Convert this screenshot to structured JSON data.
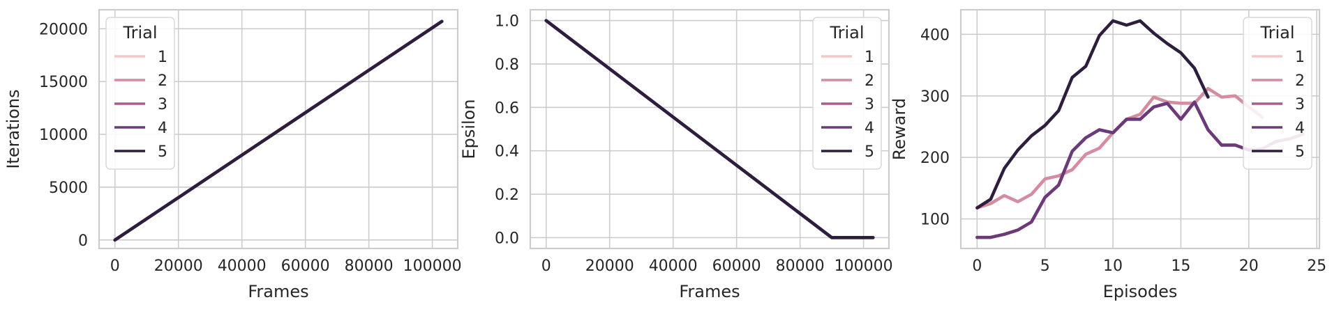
{
  "colors": {
    "background": "#ffffff",
    "grid": "#cccccc",
    "axes_edge": "#cccccc",
    "text": "#262626",
    "trial_palette": [
      "#f0c8c8",
      "#d48ca0",
      "#a65e8c",
      "#6b3a78",
      "#2d1e3e"
    ]
  },
  "chart_data": [
    {
      "type": "line",
      "title": "",
      "xlabel": "Frames",
      "ylabel": "Iterations",
      "xlim": [
        -5000,
        108000
      ],
      "ylim": [
        -800,
        21800
      ],
      "xticks": [
        0,
        20000,
        40000,
        60000,
        80000,
        100000
      ],
      "xtick_labels": [
        "0",
        "20000",
        "40000",
        "60000",
        "80000",
        "100000"
      ],
      "yticks": [
        0,
        5000,
        10000,
        15000,
        20000
      ],
      "ytick_labels": [
        "0",
        "5000",
        "10000",
        "15000",
        "20000"
      ],
      "grid": true,
      "legend": {
        "title": "Trial",
        "placement": "upper-left",
        "entries": [
          "1",
          "2",
          "3",
          "4",
          "5"
        ]
      },
      "series": [
        {
          "name": "1",
          "x": [
            0,
            103000
          ],
          "y": [
            0,
            20700
          ]
        },
        {
          "name": "2",
          "x": [
            0,
            103000
          ],
          "y": [
            0,
            20700
          ]
        },
        {
          "name": "3",
          "x": [
            0,
            103000
          ],
          "y": [
            0,
            20700
          ]
        },
        {
          "name": "4",
          "x": [
            0,
            103000
          ],
          "y": [
            0,
            20700
          ]
        },
        {
          "name": "5",
          "x": [
            0,
            103000
          ],
          "y": [
            0,
            20700
          ]
        }
      ]
    },
    {
      "type": "line",
      "title": "",
      "xlabel": "Frames",
      "ylabel": "Epsilon",
      "xlim": [
        -5000,
        108000
      ],
      "ylim": [
        -0.05,
        1.05
      ],
      "xticks": [
        0,
        20000,
        40000,
        60000,
        80000,
        100000
      ],
      "xtick_labels": [
        "0",
        "20000",
        "40000",
        "60000",
        "80000",
        "100000"
      ],
      "yticks": [
        0.0,
        0.2,
        0.4,
        0.6,
        0.8,
        1.0
      ],
      "ytick_labels": [
        "0.0",
        "0.2",
        "0.4",
        "0.6",
        "0.8",
        "1.0"
      ],
      "grid": true,
      "legend": {
        "title": "Trial",
        "placement": "upper-right",
        "entries": [
          "1",
          "2",
          "3",
          "4",
          "5"
        ]
      },
      "series": [
        {
          "name": "1",
          "x": [
            0,
            90000,
            103000
          ],
          "y": [
            1.0,
            0.0,
            0.0
          ]
        },
        {
          "name": "2",
          "x": [
            0,
            90000,
            103000
          ],
          "y": [
            1.0,
            0.0,
            0.0
          ]
        },
        {
          "name": "3",
          "x": [
            0,
            90000,
            103000
          ],
          "y": [
            1.0,
            0.0,
            0.0
          ]
        },
        {
          "name": "4",
          "x": [
            0,
            90000,
            103000
          ],
          "y": [
            1.0,
            0.0,
            0.0
          ]
        },
        {
          "name": "5",
          "x": [
            0,
            90000,
            103000
          ],
          "y": [
            1.0,
            0.0,
            0.0
          ]
        }
      ]
    },
    {
      "type": "line",
      "title": "",
      "xlabel": "Episodes",
      "ylabel": "Reward",
      "xlim": [
        -1.2,
        25.2
      ],
      "ylim": [
        52,
        440
      ],
      "xticks": [
        0,
        5,
        10,
        15,
        20,
        25
      ],
      "xtick_labels": [
        "0",
        "5",
        "10",
        "15",
        "20",
        "25"
      ],
      "yticks": [
        100,
        200,
        300,
        400
      ],
      "ytick_labels": [
        "100",
        "200",
        "300",
        "400"
      ],
      "grid": true,
      "legend": {
        "title": "Trial",
        "placement": "upper-right",
        "entries": [
          "1",
          "2",
          "3",
          "4",
          "5"
        ]
      },
      "series": [
        {
          "name": "1",
          "x": [
            0,
            1,
            2,
            3,
            4,
            5,
            6,
            7,
            8,
            9,
            10,
            11,
            12,
            13,
            14,
            15,
            16,
            17,
            18,
            19,
            20,
            21
          ],
          "y": [
            118,
            125,
            138,
            128,
            140,
            165,
            170,
            180,
            205,
            215,
            240,
            262,
            270,
            298,
            290,
            288,
            288,
            312,
            298,
            300,
            282,
            265
          ]
        },
        {
          "name": "2",
          "x": [
            0,
            1,
            2,
            3,
            4,
            5,
            6,
            7,
            8,
            9,
            10,
            11,
            12,
            13,
            14,
            15,
            16,
            17,
            18,
            19,
            20,
            21
          ],
          "y": [
            118,
            125,
            138,
            128,
            140,
            165,
            170,
            180,
            205,
            215,
            240,
            262,
            270,
            298,
            290,
            288,
            288,
            312,
            298,
            300,
            282,
            265
          ]
        },
        {
          "name": "3",
          "x": [
            0,
            1,
            2,
            3,
            4,
            5,
            6,
            7,
            8,
            9,
            10,
            11,
            12,
            13,
            14,
            15,
            16,
            17,
            18,
            19,
            20,
            21,
            22,
            23,
            24
          ],
          "y": [
            70,
            70,
            75,
            82,
            95,
            135,
            155,
            210,
            232,
            245,
            240,
            262,
            262,
            282,
            288,
            262,
            290,
            245,
            220,
            220,
            212,
            214,
            226,
            230,
            238
          ]
        },
        {
          "name": "4",
          "x": [
            0,
            1,
            2,
            3,
            4,
            5,
            6,
            7,
            8,
            9,
            10,
            11,
            12,
            13,
            14,
            15,
            16,
            17,
            18,
            19,
            20
          ],
          "y": [
            70,
            70,
            75,
            82,
            95,
            135,
            155,
            210,
            232,
            245,
            240,
            262,
            262,
            282,
            288,
            262,
            290,
            245,
            220,
            220,
            212
          ]
        },
        {
          "name": "5",
          "x": [
            0,
            1,
            2,
            3,
            4,
            5,
            6,
            7,
            8,
            9,
            10,
            11,
            12,
            13,
            14,
            15,
            16,
            17
          ],
          "y": [
            118,
            132,
            182,
            212,
            235,
            252,
            276,
            330,
            348,
            398,
            422,
            415,
            422,
            402,
            385,
            370,
            345,
            298
          ]
        }
      ]
    }
  ]
}
